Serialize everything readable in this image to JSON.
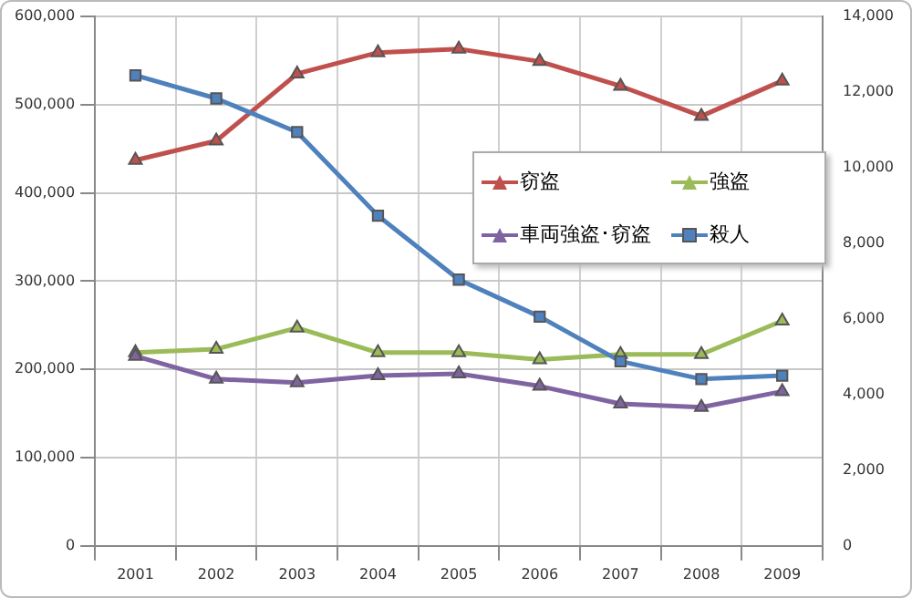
{
  "chart_data": {
    "type": "line",
    "categories": [
      "2001",
      "2002",
      "2003",
      "2004",
      "2005",
      "2006",
      "2007",
      "2008",
      "2009"
    ],
    "series": [
      {
        "name": "窃盗",
        "color": "#c0504d",
        "marker": "triangle",
        "values": [
          437000,
          459000,
          535000,
          559000,
          563000,
          549000,
          521000,
          487000,
          527000
        ]
      },
      {
        "name": "強盗",
        "color": "#9bbb59",
        "marker": "triangle",
        "values": [
          219000,
          223000,
          247000,
          219000,
          219000,
          211000,
          217000,
          217000,
          255000
        ]
      },
      {
        "name": "車両強盗･窃盗",
        "color": "#8064a2",
        "marker": "triangle",
        "values": [
          215000,
          189000,
          185000,
          193000,
          195000,
          181000,
          161000,
          157000,
          175000
        ]
      },
      {
        "name": "殺人",
        "color": "#4f81bd",
        "marker": "square",
        "axis": "y2",
        "values": [
          12440,
          11830,
          10940,
          8730,
          7040,
          6060,
          4880,
          4410,
          4500
        ]
      }
    ],
    "ylim": [
      0,
      600000
    ],
    "yticks": [
      0,
      {
        "value": 100000,
        "label": "100,000"
      },
      {
        "value": 200000,
        "label": "200,000"
      },
      {
        "value": 300000,
        "label": "300,000"
      },
      {
        "value": 400000,
        "label": "400,000"
      },
      {
        "value": 500000,
        "label": "500,000"
      },
      {
        "value": 600000,
        "label": "600,000"
      }
    ],
    "y2lim": [
      0,
      14000
    ],
    "y2ticks": [
      0,
      {
        "value": 2000,
        "label": "2,000"
      },
      {
        "value": 4000,
        "label": "4,000"
      },
      {
        "value": 6000,
        "label": "6,000"
      },
      {
        "value": 8000,
        "label": "8,000"
      },
      {
        "value": 10000,
        "label": "10,000"
      },
      {
        "value": 12000,
        "label": "12,000"
      },
      {
        "value": 14000,
        "label": "14,000"
      }
    ],
    "grid": true,
    "legend": "right"
  }
}
